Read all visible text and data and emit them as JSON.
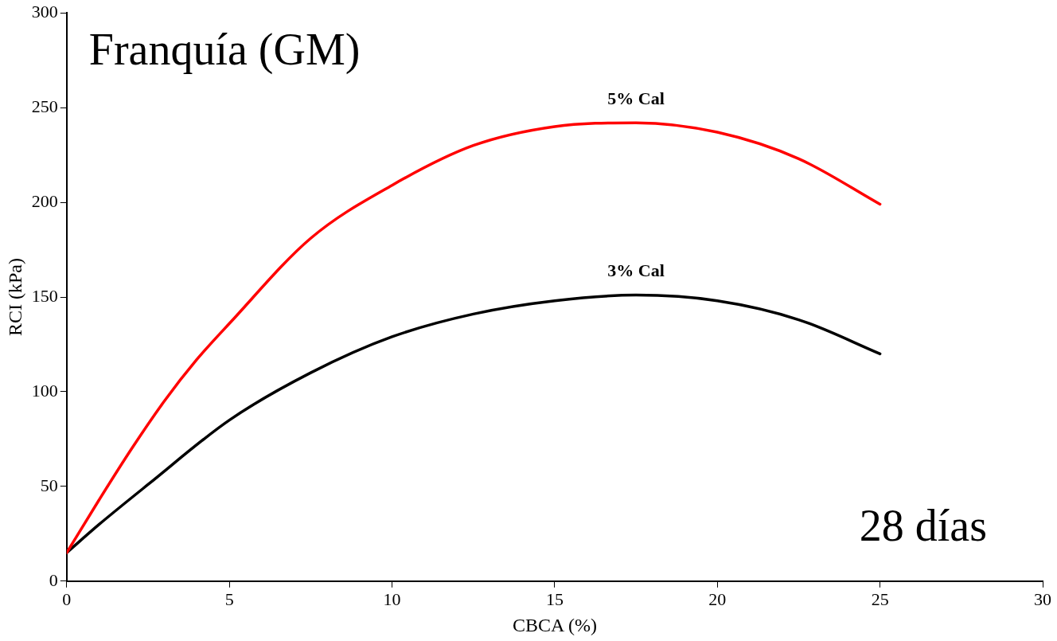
{
  "chart_data": {
    "type": "line",
    "xlabel": "CBCA (%)",
    "ylabel": "RCI (kPa)",
    "annotations": [
      "Franquía (GM)",
      "28 días"
    ],
    "xlim": [
      0,
      30
    ],
    "xticks": [
      0,
      5,
      10,
      15,
      20,
      25,
      30
    ],
    "ylim": [
      0,
      300
    ],
    "yticks": [
      0,
      50,
      100,
      150,
      200,
      250,
      300
    ],
    "grid": false,
    "legend": false,
    "marker": "none",
    "line_style": "solid",
    "series": [
      {
        "name": "5% Cal",
        "color": "#ff0000",
        "x": [
          0,
          1,
          2,
          3,
          4,
          5,
          7.5,
          10,
          12.5,
          15,
          17.5,
          20,
          22.5,
          25
        ],
        "values": [
          15,
          43,
          70,
          95,
          117,
          136,
          181,
          209,
          230,
          240,
          242,
          237,
          223,
          199
        ]
      },
      {
        "name": "3% Cal",
        "color": "#000000",
        "x": [
          0,
          1,
          2.5,
          5,
          7.5,
          10,
          12.5,
          15,
          17.5,
          20,
          22.5,
          25
        ],
        "values": [
          15,
          30,
          51,
          85,
          110,
          129,
          141,
          148,
          151,
          148,
          138,
          120
        ]
      }
    ]
  }
}
